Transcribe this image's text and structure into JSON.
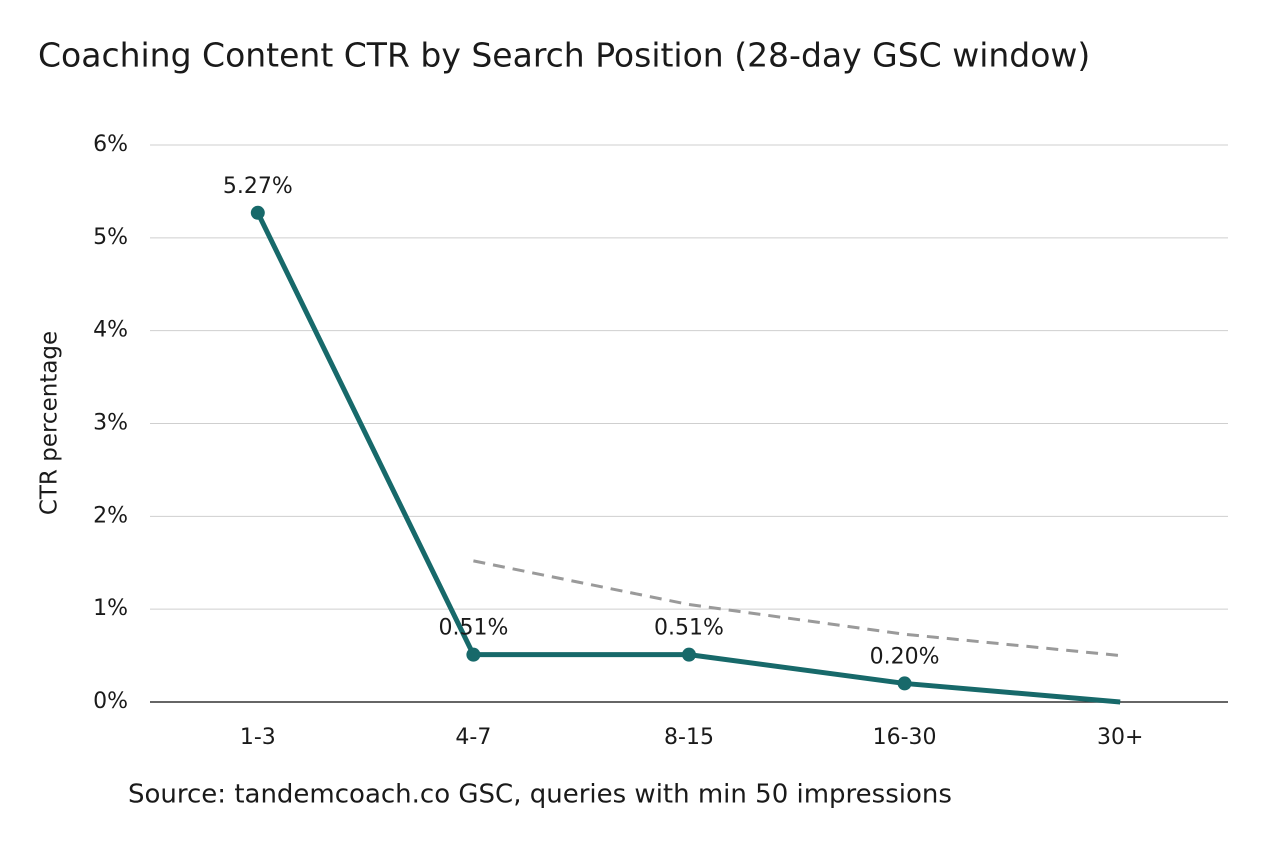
{
  "chart_data": {
    "type": "line",
    "title": "Coaching Content CTR by Search Position (28-day GSC window)",
    "y_label": "CTR percentage",
    "source": "Source: tandemcoach.co GSC, queries with min 50 impressions",
    "categories": [
      "1-3",
      "4-7",
      "8-15",
      "16-30",
      "30+"
    ],
    "series": [
      {
        "color": "#17696a",
        "values": [
          5.27,
          0.51,
          0.51,
          0.2,
          0
        ],
        "value_labels": [
          "5.27%",
          "0.51%",
          "0.51%",
          "0.20%",
          null
        ]
      },
      {
        "color": "#9a9a9a",
        "dashed": true,
        "values": [
          null,
          1.52,
          1.05,
          0.73,
          0.5
        ]
      }
    ],
    "ylim": [
      0,
      6
    ],
    "yticks": [
      {
        "value": 0,
        "label": "0%"
      },
      {
        "value": 1,
        "label": "1%"
      },
      {
        "value": 2,
        "label": "2%"
      },
      {
        "value": 3,
        "label": "3%"
      },
      {
        "value": 4,
        "label": "4%"
      },
      {
        "value": 5,
        "label": "5%"
      },
      {
        "value": 6,
        "label": "6%"
      }
    ],
    "grid": true
  }
}
